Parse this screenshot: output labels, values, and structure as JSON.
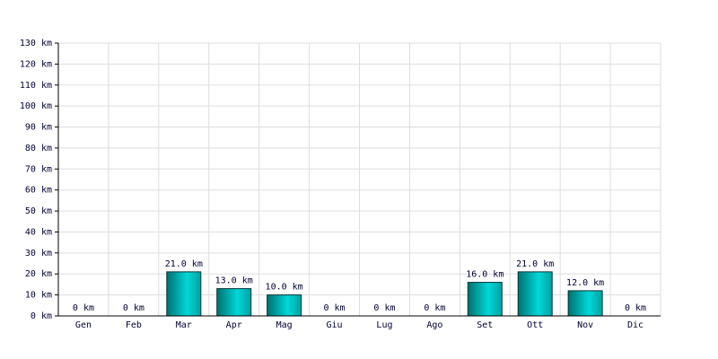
{
  "chart_data": {
    "type": "bar",
    "categories": [
      "Gen",
      "Feb",
      "Mar",
      "Apr",
      "Mag",
      "Giu",
      "Lug",
      "Ago",
      "Set",
      "Ott",
      "Nov",
      "Dic"
    ],
    "values": [
      0,
      0,
      21,
      13,
      10,
      0,
      0,
      0,
      16,
      21,
      12,
      0
    ],
    "value_labels": [
      "0 km",
      "0 km",
      "21.0 km",
      "13.0 km",
      "10.0 km",
      "0 km",
      "0 km",
      "0 km",
      "16.0 km",
      "21.0 km",
      "12.0 km",
      "0 km"
    ],
    "color": "#00d8d8",
    "ylim": [
      0,
      130
    ],
    "yticks": [
      {
        "value": 0,
        "label": "0 km"
      },
      {
        "value": 10,
        "label": "10 km"
      },
      {
        "value": 20,
        "label": "20 km"
      },
      {
        "value": 30,
        "label": "30 km"
      },
      {
        "value": 40,
        "label": "40 km"
      },
      {
        "value": 50,
        "label": "50 km"
      },
      {
        "value": 60,
        "label": "60 km"
      },
      {
        "value": 70,
        "label": "70 km"
      },
      {
        "value": 80,
        "label": "80 km"
      },
      {
        "value": 90,
        "label": "90 km"
      },
      {
        "value": 100,
        "label": "100 km"
      },
      {
        "value": 110,
        "label": "110 km"
      },
      {
        "value": 120,
        "label": "120 km"
      },
      {
        "value": 130,
        "label": "130 km"
      }
    ],
    "grid": true
  }
}
